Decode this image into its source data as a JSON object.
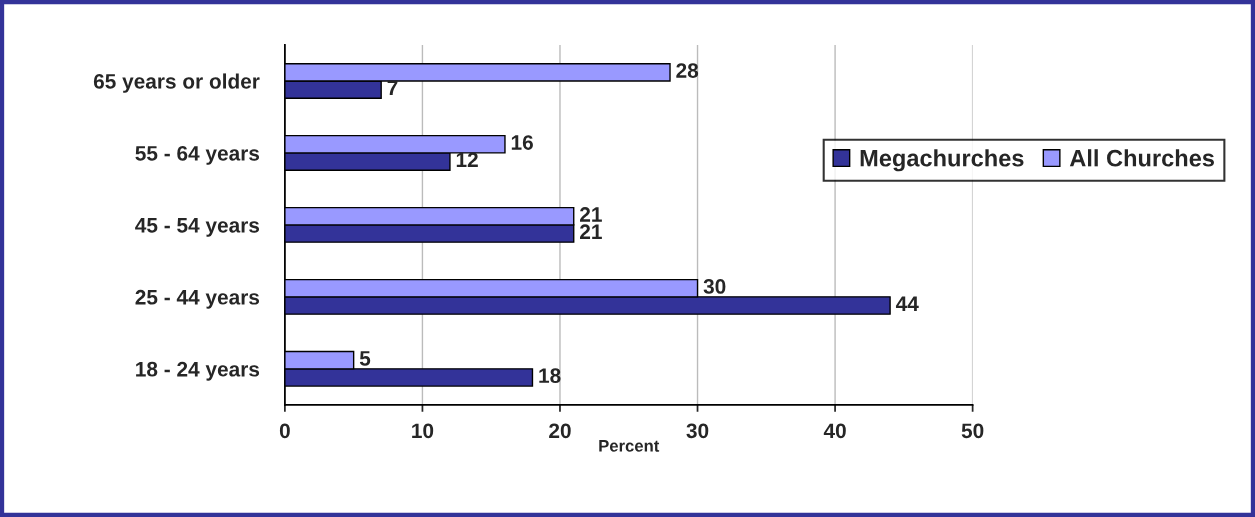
{
  "chart_data": {
    "type": "bar",
    "orientation": "horizontal",
    "xlabel": "Percent",
    "categories": [
      "65 years or older",
      "55 - 64 years",
      "45 - 54 years",
      "25 - 44 years",
      "18 - 24 years"
    ],
    "series": [
      {
        "name": "Megachurches",
        "color": "#333399",
        "values": [
          7,
          12,
          21,
          44,
          18
        ]
      },
      {
        "name": "All Churches",
        "color": "#9999ff",
        "values": [
          28,
          16,
          21,
          30,
          5
        ]
      }
    ],
    "xlim": [
      0,
      50
    ],
    "xticks": [
      0,
      10,
      20,
      30,
      40,
      50
    ],
    "grid": "x",
    "data_labels": true,
    "legend": "right"
  }
}
